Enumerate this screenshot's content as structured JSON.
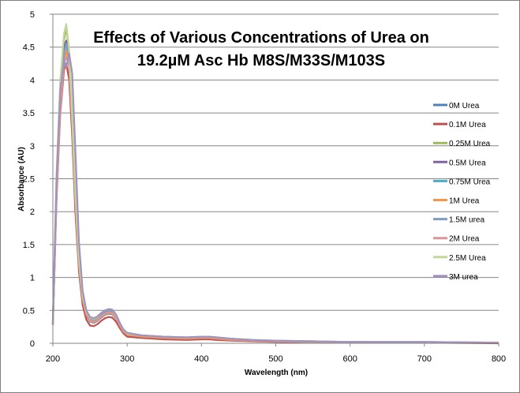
{
  "chart_data": {
    "type": "line",
    "title_line1": "Effects of Various Concentrations of Urea on",
    "title_line2": "19.2µM Asc Hb M8S/M33S/M103S",
    "xlabel": "Wavelength (nm)",
    "ylabel": "Absorbance (AU)",
    "xlim": [
      200,
      800
    ],
    "ylim": [
      0,
      5
    ],
    "x_ticks": [
      200,
      300,
      400,
      500,
      600,
      700,
      800
    ],
    "y_ticks": [
      0,
      0.5,
      1,
      1.5,
      2,
      2.5,
      3,
      3.5,
      4,
      4.5,
      5
    ],
    "y_tick_labels": [
      "0",
      "0.5",
      "1",
      "1.5",
      "2",
      "2.5",
      "3",
      "3.5",
      "4",
      "4.5",
      "5"
    ],
    "grid": "horizontal major gridlines",
    "legend_position": "right",
    "x": [
      200,
      205,
      210,
      215,
      218,
      222,
      226,
      230,
      235,
      240,
      245,
      250,
      255,
      260,
      265,
      270,
      275,
      280,
      285,
      290,
      295,
      300,
      320,
      350,
      380,
      400,
      410,
      420,
      440,
      470,
      500,
      550,
      600,
      700,
      800
    ],
    "series": [
      {
        "name": "0M Urea",
        "color": "#4f81bd",
        "values": [
          0.3,
          2.3,
          3.6,
          4.3,
          4.45,
          4.2,
          3.3,
          2.2,
          1.2,
          0.65,
          0.42,
          0.33,
          0.31,
          0.34,
          0.39,
          0.43,
          0.45,
          0.44,
          0.38,
          0.27,
          0.18,
          0.13,
          0.1,
          0.08,
          0.07,
          0.08,
          0.08,
          0.07,
          0.05,
          0.04,
          0.03,
          0.02,
          0.02,
          0.01,
          0.01
        ]
      },
      {
        "name": "0.1M Urea",
        "color": "#c0504d",
        "values": [
          0.28,
          2.2,
          3.5,
          4.15,
          4.25,
          4.0,
          3.15,
          2.05,
          1.1,
          0.58,
          0.36,
          0.27,
          0.26,
          0.29,
          0.34,
          0.38,
          0.4,
          0.39,
          0.33,
          0.23,
          0.15,
          0.1,
          0.08,
          0.06,
          0.05,
          0.06,
          0.06,
          0.05,
          0.04,
          0.03,
          0.02,
          0.01,
          0.01,
          0.01,
          0.0
        ]
      },
      {
        "name": "0.25M Urea",
        "color": "#9bbb59",
        "values": [
          0.32,
          2.5,
          3.9,
          4.6,
          4.8,
          4.4,
          3.4,
          2.3,
          1.25,
          0.7,
          0.46,
          0.37,
          0.35,
          0.38,
          0.43,
          0.47,
          0.49,
          0.48,
          0.41,
          0.29,
          0.19,
          0.14,
          0.11,
          0.09,
          0.08,
          0.09,
          0.09,
          0.08,
          0.06,
          0.04,
          0.03,
          0.02,
          0.02,
          0.01,
          0.01
        ]
      },
      {
        "name": "0.5M Urea",
        "color": "#8064a2",
        "values": [
          0.31,
          2.4,
          3.8,
          4.5,
          4.6,
          4.3,
          3.35,
          2.25,
          1.22,
          0.68,
          0.44,
          0.35,
          0.33,
          0.36,
          0.41,
          0.45,
          0.47,
          0.46,
          0.4,
          0.28,
          0.19,
          0.14,
          0.11,
          0.09,
          0.08,
          0.09,
          0.09,
          0.08,
          0.06,
          0.04,
          0.03,
          0.02,
          0.02,
          0.01,
          0.01
        ]
      },
      {
        "name": "0.75M Urea",
        "color": "#4bacc6",
        "values": [
          0.3,
          2.35,
          3.7,
          4.4,
          4.55,
          4.3,
          3.35,
          2.25,
          1.2,
          0.67,
          0.43,
          0.34,
          0.32,
          0.35,
          0.4,
          0.44,
          0.46,
          0.45,
          0.39,
          0.27,
          0.18,
          0.13,
          0.1,
          0.08,
          0.07,
          0.08,
          0.08,
          0.07,
          0.05,
          0.04,
          0.03,
          0.02,
          0.02,
          0.01,
          0.01
        ]
      },
      {
        "name": "1M Urea",
        "color": "#f79646",
        "values": [
          0.3,
          2.3,
          3.6,
          4.3,
          4.45,
          4.25,
          3.35,
          2.25,
          1.2,
          0.66,
          0.43,
          0.34,
          0.32,
          0.35,
          0.4,
          0.44,
          0.46,
          0.45,
          0.39,
          0.27,
          0.18,
          0.13,
          0.1,
          0.08,
          0.07,
          0.08,
          0.08,
          0.07,
          0.05,
          0.04,
          0.03,
          0.02,
          0.02,
          0.01,
          0.01
        ]
      },
      {
        "name": "1.5M urea",
        "color": "#7f9cc4",
        "values": [
          0.32,
          2.4,
          3.7,
          4.4,
          4.55,
          4.35,
          3.45,
          2.35,
          1.28,
          0.72,
          0.47,
          0.38,
          0.36,
          0.39,
          0.44,
          0.48,
          0.5,
          0.49,
          0.42,
          0.3,
          0.2,
          0.15,
          0.12,
          0.1,
          0.09,
          0.1,
          0.1,
          0.09,
          0.07,
          0.05,
          0.04,
          0.03,
          0.02,
          0.02,
          0.01
        ]
      },
      {
        "name": "2M Urea",
        "color": "#d99694",
        "values": [
          0.29,
          2.25,
          3.55,
          4.25,
          4.35,
          4.2,
          3.35,
          2.25,
          1.22,
          0.68,
          0.44,
          0.35,
          0.33,
          0.36,
          0.41,
          0.45,
          0.47,
          0.46,
          0.4,
          0.28,
          0.19,
          0.14,
          0.11,
          0.09,
          0.08,
          0.09,
          0.09,
          0.08,
          0.06,
          0.04,
          0.03,
          0.02,
          0.02,
          0.01,
          0.01
        ]
      },
      {
        "name": "2.5M Urea",
        "color": "#c3d69b",
        "values": [
          0.33,
          2.6,
          4.0,
          4.7,
          4.85,
          4.45,
          3.45,
          2.35,
          1.28,
          0.73,
          0.48,
          0.39,
          0.37,
          0.4,
          0.46,
          0.5,
          0.52,
          0.51,
          0.43,
          0.31,
          0.2,
          0.15,
          0.12,
          0.1,
          0.09,
          0.1,
          0.1,
          0.09,
          0.07,
          0.05,
          0.04,
          0.03,
          0.02,
          0.02,
          0.01
        ]
      },
      {
        "name": "3M urea",
        "color": "#a092c0",
        "values": [
          0.34,
          2.5,
          3.85,
          4.3,
          4.2,
          4.4,
          4.1,
          3.0,
          1.55,
          0.8,
          0.5,
          0.4,
          0.38,
          0.41,
          0.46,
          0.5,
          0.52,
          0.51,
          0.44,
          0.31,
          0.21,
          0.16,
          0.12,
          0.1,
          0.09,
          0.1,
          0.1,
          0.09,
          0.07,
          0.05,
          0.04,
          0.03,
          0.02,
          0.02,
          0.01
        ]
      }
    ]
  }
}
